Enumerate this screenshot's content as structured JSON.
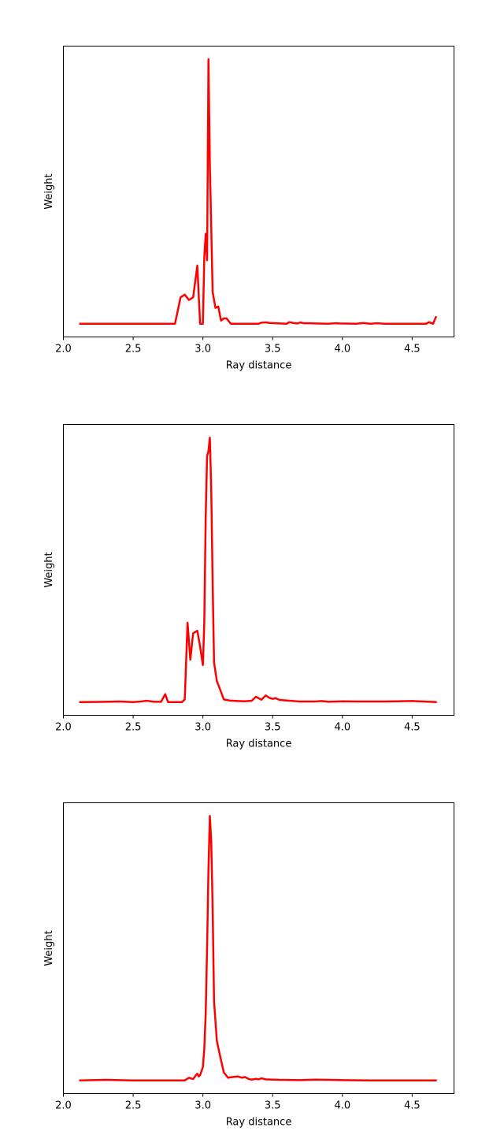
{
  "chart_data": [
    {
      "type": "line",
      "title": "",
      "xlabel": "Ray distance",
      "ylabel": "Weight",
      "xlim": [
        2.0,
        4.8
      ],
      "ylim": [
        -0.05,
        1.05
      ],
      "xticks": [
        "2.0",
        "2.5",
        "3.0",
        "3.5",
        "4.0",
        "4.5"
      ],
      "yticks_shown": false,
      "grid": false,
      "series": [
        {
          "color": "#ff0000",
          "x": [
            2.12,
            2.8,
            2.82,
            2.84,
            2.87,
            2.9,
            2.93,
            2.96,
            2.98,
            3.0,
            3.01,
            3.02,
            3.03,
            3.04,
            3.05,
            3.06,
            3.07,
            3.09,
            3.11,
            3.13,
            3.15,
            3.17,
            3.2,
            3.4,
            3.42,
            3.45,
            3.48,
            3.6,
            3.62,
            3.65,
            3.68,
            3.7,
            3.72,
            3.9,
            3.95,
            3.98,
            4.1,
            4.15,
            4.18,
            4.2,
            4.25,
            4.3,
            4.5,
            4.6,
            4.62,
            4.65,
            4.67
          ],
          "values": [
            0.0,
            0.0,
            0.05,
            0.1,
            0.11,
            0.09,
            0.1,
            0.22,
            0.0,
            0.0,
            0.25,
            0.34,
            0.24,
            1.0,
            0.6,
            0.36,
            0.12,
            0.06,
            0.065,
            0.012,
            0.02,
            0.02,
            0.0,
            0.0,
            0.004,
            0.005,
            0.003,
            0.0,
            0.006,
            0.003,
            0.001,
            0.005,
            0.002,
            0.0,
            0.002,
            0.001,
            0.0,
            0.003,
            0.001,
            0.0,
            0.002,
            0.0,
            0.0,
            0.0,
            0.006,
            0.0,
            0.025
          ]
        }
      ]
    },
    {
      "type": "line",
      "title": "",
      "xlabel": "Ray distance",
      "ylabel": "Weight",
      "xlim": [
        2.0,
        4.8
      ],
      "ylim": [
        -0.05,
        1.05
      ],
      "xticks": [
        "2.0",
        "2.5",
        "3.0",
        "3.5",
        "4.0",
        "4.5"
      ],
      "yticks_shown": false,
      "grid": false,
      "series": [
        {
          "color": "#ff0000",
          "x": [
            2.12,
            2.3,
            2.4,
            2.5,
            2.55,
            2.6,
            2.65,
            2.7,
            2.73,
            2.75,
            2.8,
            2.85,
            2.87,
            2.89,
            2.91,
            2.93,
            2.96,
            2.98,
            3.0,
            3.01,
            3.02,
            3.03,
            3.04,
            3.05,
            3.06,
            3.07,
            3.08,
            3.1,
            3.15,
            3.2,
            3.25,
            3.3,
            3.35,
            3.38,
            3.42,
            3.45,
            3.48,
            3.5,
            3.52,
            3.55,
            3.6,
            3.7,
            3.8,
            3.85,
            3.9,
            4.0,
            4.1,
            4.3,
            4.4,
            4.5,
            4.67
          ],
          "values": [
            0.0,
            0.001,
            0.002,
            0.0,
            0.002,
            0.005,
            0.001,
            0.001,
            0.03,
            0.0,
            0.0,
            0.0,
            0.01,
            0.3,
            0.16,
            0.26,
            0.27,
            0.21,
            0.14,
            0.3,
            0.7,
            0.93,
            0.95,
            1.0,
            0.8,
            0.45,
            0.15,
            0.08,
            0.01,
            0.005,
            0.004,
            0.003,
            0.005,
            0.02,
            0.009,
            0.025,
            0.015,
            0.012,
            0.015,
            0.008,
            0.006,
            0.002,
            0.002,
            0.004,
            0.001,
            0.003,
            0.002,
            0.002,
            0.003,
            0.004,
            0.0
          ]
        }
      ]
    },
    {
      "type": "line",
      "title": "",
      "xlabel": "Ray distance",
      "ylabel": "Weight",
      "xlim": [
        2.0,
        4.8
      ],
      "ylim": [
        -0.05,
        1.05
      ],
      "xticks": [
        "2.0",
        "2.5",
        "3.0",
        "3.5",
        "4.0",
        "4.5"
      ],
      "yticks_shown": false,
      "grid": false,
      "series": [
        {
          "color": "#ff0000",
          "x": [
            2.12,
            2.3,
            2.5,
            2.7,
            2.87,
            2.9,
            2.93,
            2.95,
            2.96,
            2.97,
            2.98,
            3.0,
            3.01,
            3.02,
            3.03,
            3.04,
            3.05,
            3.06,
            3.07,
            3.08,
            3.1,
            3.12,
            3.15,
            3.18,
            3.2,
            3.25,
            3.28,
            3.3,
            3.33,
            3.35,
            3.38,
            3.4,
            3.42,
            3.45,
            3.5,
            3.55,
            3.7,
            3.8,
            3.9,
            4.0,
            4.2,
            4.5,
            4.67
          ],
          "values": [
            0.0,
            0.002,
            0.0,
            0.0,
            0.0,
            0.01,
            0.005,
            0.02,
            0.025,
            0.015,
            0.02,
            0.05,
            0.12,
            0.25,
            0.5,
            0.8,
            1.0,
            0.9,
            0.65,
            0.3,
            0.15,
            0.1,
            0.03,
            0.01,
            0.012,
            0.015,
            0.01,
            0.013,
            0.005,
            0.003,
            0.006,
            0.004,
            0.008,
            0.004,
            0.003,
            0.002,
            0.001,
            0.003,
            0.002,
            0.001,
            0.0,
            0.0,
            0.0
          ]
        }
      ]
    }
  ]
}
